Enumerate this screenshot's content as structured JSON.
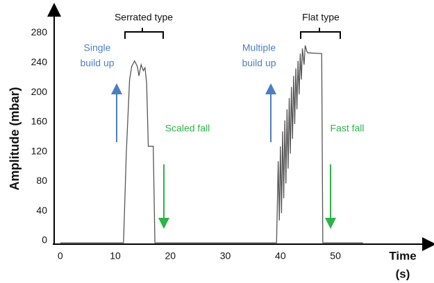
{
  "chart_data": {
    "type": "line",
    "x": [
      0,
      11.5,
      12,
      12.6,
      13,
      13.5,
      14,
      14.3,
      14.7,
      15.1,
      15.4,
      15.7,
      16,
      16.9,
      17.2,
      39.3,
      39.6,
      39.8,
      40.0,
      40.2,
      40.4,
      40.6,
      40.8,
      41.0,
      41.2,
      41.4,
      41.6,
      41.8,
      42.0,
      42.2,
      42.4,
      42.6,
      42.8,
      43.0,
      43.2,
      43.4,
      43.6,
      43.8,
      44.0,
      44.3,
      44.5,
      44.8,
      45,
      47.5,
      47.7,
      55
    ],
    "series": [
      {
        "color": "#555555",
        "values": [
          0,
          0,
          120,
          220,
          238,
          245,
          238,
          225,
          240,
          232,
          236,
          215,
          130,
          130,
          0,
          0,
          110,
          30,
          130,
          40,
          150,
          60,
          165,
          80,
          180,
          100,
          195,
          120,
          210,
          140,
          225,
          160,
          235,
          180,
          245,
          200,
          255,
          220,
          262,
          240,
          266,
          258,
          256,
          255,
          0,
          0
        ]
      }
    ],
    "xlim": [
      -1.1,
      67.9
    ],
    "ylim": [
      0,
      316
    ],
    "xticks": [
      0,
      10,
      20,
      30,
      40,
      50
    ],
    "yticks": [
      0,
      40,
      80,
      120,
      160,
      200,
      240,
      280
    ],
    "y_label": "Amplitude  (mbar)",
    "x_label": "Time",
    "x_unit": "(s)",
    "annotations": {
      "serrated": "Serrated type",
      "flat": "Flat type",
      "single": [
        "Single",
        "build up"
      ],
      "multiple": [
        "Multiple",
        "build up"
      ],
      "scaled_fall": "Scaled fall",
      "fast_fall": "Fast fall"
    }
  }
}
